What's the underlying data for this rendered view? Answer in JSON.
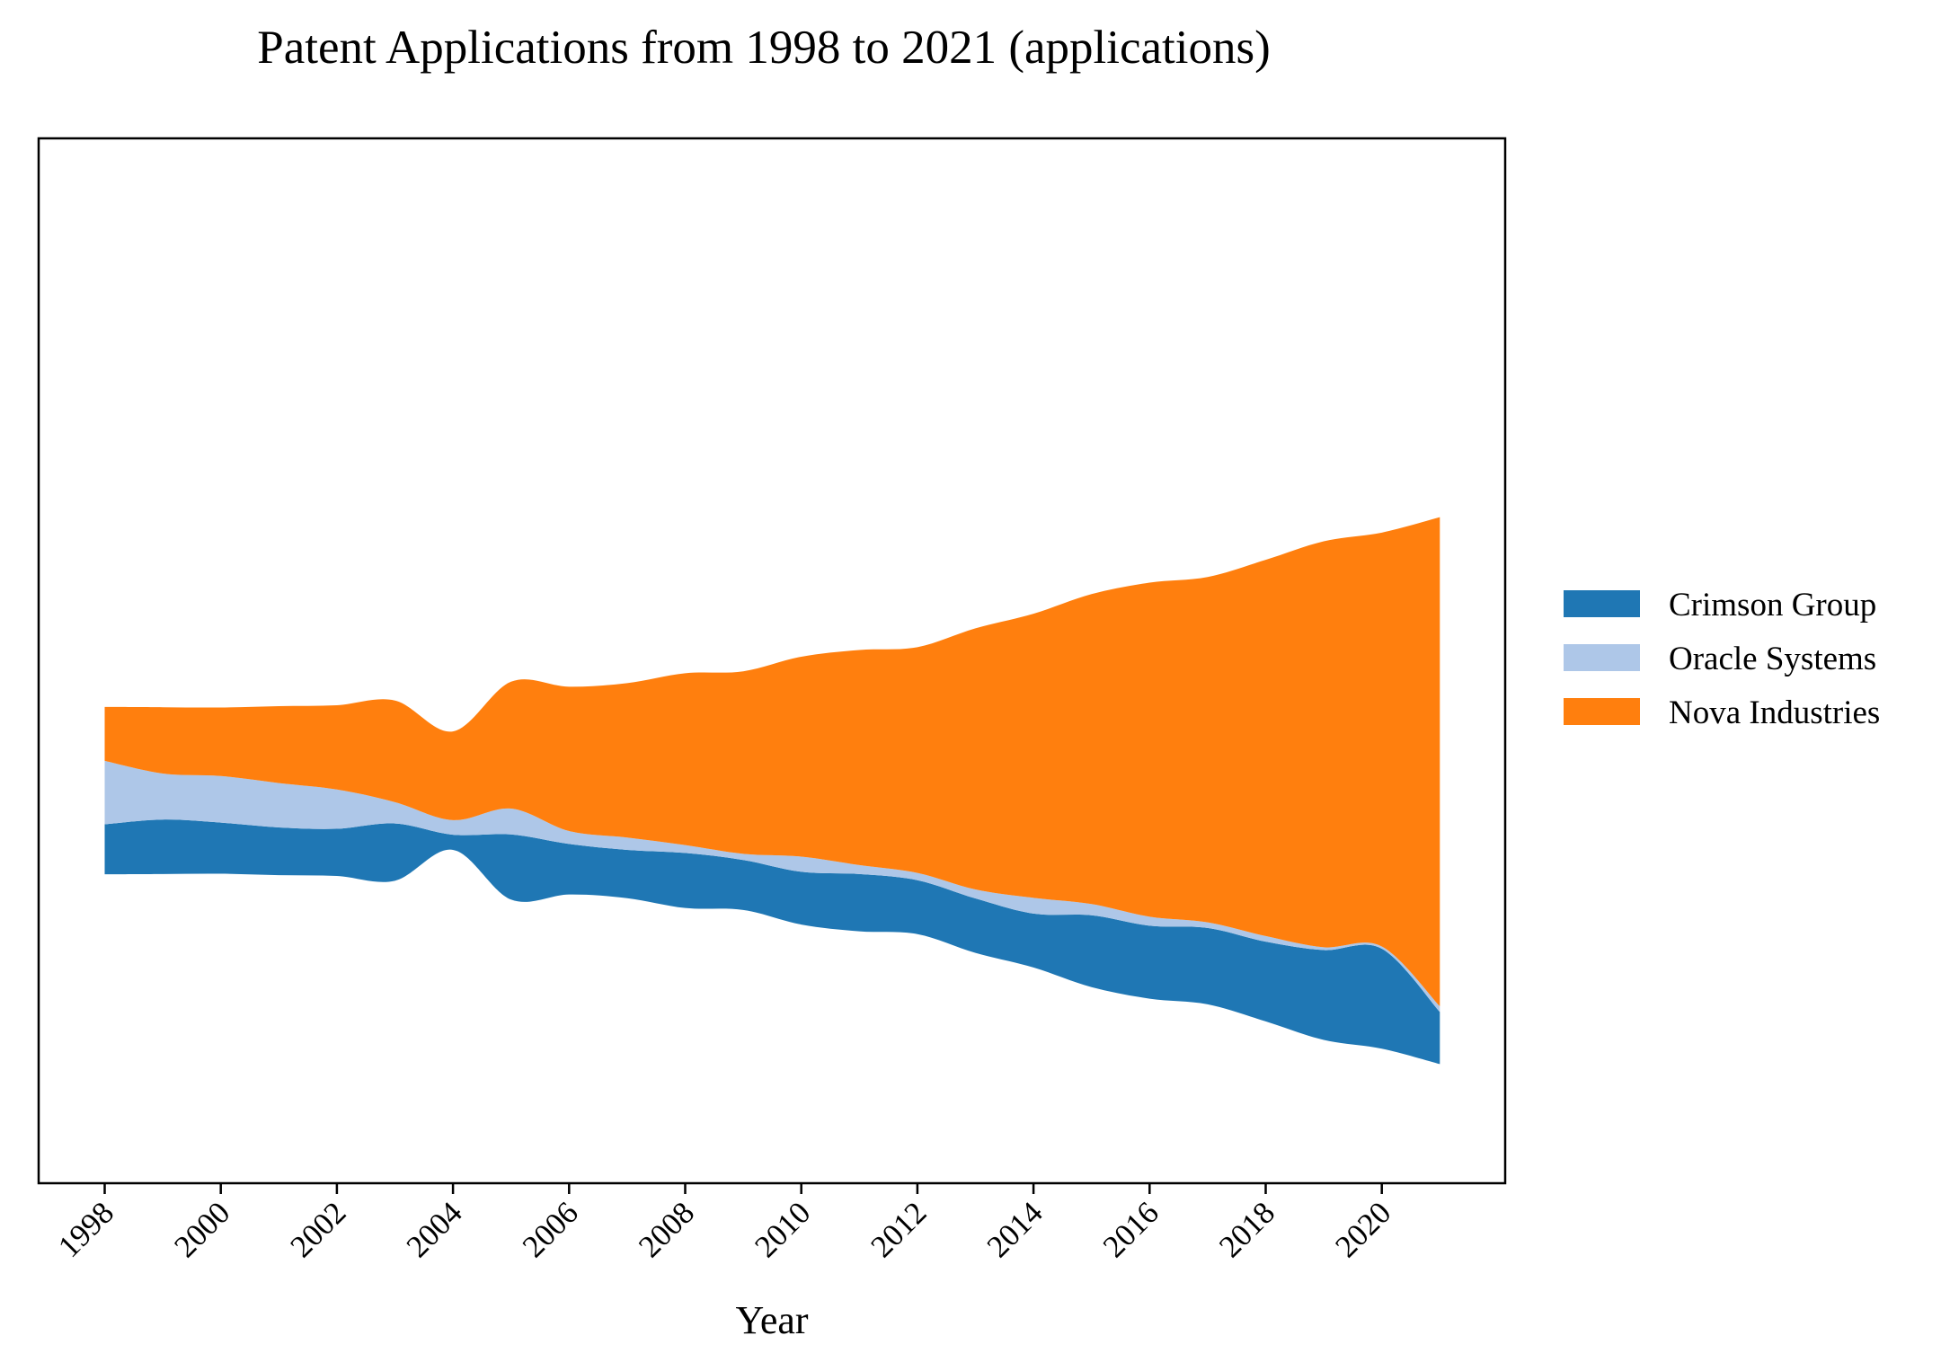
{
  "chart_data": {
    "type": "streamgraph",
    "title": "Patent Applications from 1998 to 2021 (applications)",
    "xlabel": "Year",
    "ylabel": "",
    "x": [
      1998,
      1999,
      2000,
      2001,
      2002,
      2003,
      2004,
      2005,
      2006,
      2007,
      2008,
      2009,
      2010,
      2011,
      2012,
      2013,
      2014,
      2015,
      2016,
      2017,
      2018,
      2019,
      2020,
      2021
    ],
    "x_ticks": [
      "1998",
      "2000",
      "2002",
      "2004",
      "2006",
      "2008",
      "2010",
      "2012",
      "2014",
      "2016",
      "2018",
      "2020"
    ],
    "series": [
      {
        "name": "Crimson Group",
        "color": "#1f77b4",
        "values": [
          89,
          97,
          91,
          85,
          84,
          102,
          27,
          116,
          90,
          86,
          98,
          89,
          94,
          102,
          96,
          97,
          96,
          128,
          130,
          136,
          142,
          160,
          178,
          93
        ]
      },
      {
        "name": "Oracle Systems",
        "color": "#aec7e8",
        "values": [
          113,
          82,
          83,
          79,
          70,
          38,
          26,
          46,
          23,
          22,
          14,
          11,
          27,
          16,
          13,
          16,
          28,
          20,
          16,
          10,
          10,
          5,
          4,
          10
        ]
      },
      {
        "name": "Nova Industries",
        "color": "#ff7f0e",
        "values": [
          96,
          118,
          122,
          137,
          150,
          181,
          158,
          226,
          257,
          275,
          306,
          325,
          356,
          383,
          402,
          465,
          506,
          552,
          595,
          615,
          670,
          723,
          737,
          871
        ]
      }
    ],
    "legend": {
      "position": "right",
      "entries": [
        "Crimson Group",
        "Oracle Systems",
        "Nova Industries"
      ]
    },
    "grid": false
  }
}
